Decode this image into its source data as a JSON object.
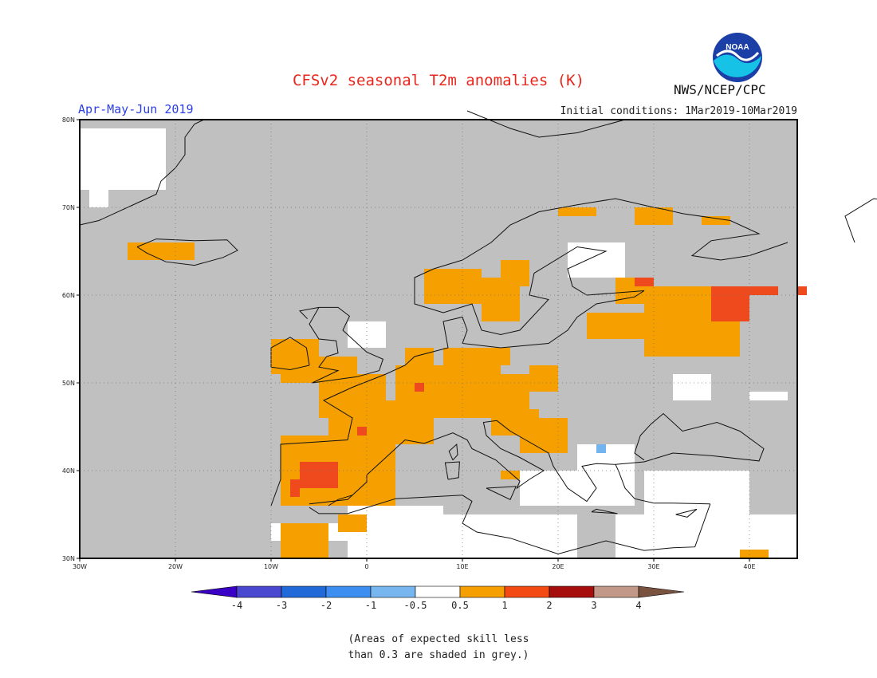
{
  "title": "CFSv2 seasonal T2m anomalies (K)",
  "period": "Apr-May-Jun 2019",
  "initial_conditions": "Initial conditions: 1Mar2019-10Mar2019",
  "agency": "NWS/NCEP/CPC",
  "logo_text": "NOAA",
  "map": {
    "lon_range": [
      -30,
      45
    ],
    "lat_range": [
      30,
      80
    ],
    "lon_ticks": [
      "30W",
      "20W",
      "10W",
      "0",
      "10E",
      "20E",
      "30E",
      "40E"
    ],
    "lat_ticks": [
      "30N",
      "40N",
      "50N",
      "60N",
      "70N",
      "80N"
    ],
    "grid": "dotted",
    "colors": {
      "low_skill": "#c0c0c0",
      "neutral": "#ffffff",
      "warm_0_5_1": "#f5a000",
      "warm_1_2": "#ee4a1e",
      "cool_m1_m0_5": "#74b4ee"
    }
  },
  "colorbar": {
    "labels": [
      "-4",
      "-3",
      "-2",
      "-1",
      "-0.5",
      "0.5",
      "1",
      "2",
      "3",
      "4"
    ],
    "colors": [
      "#3a00c6",
      "#4a48d0",
      "#1f6ad8",
      "#3c8ef0",
      "#78b6f0",
      "#ffffff",
      "#f5a000",
      "#f24a12",
      "#a60d0d",
      "#c29888",
      "#7a5340"
    ]
  },
  "note_lines": [
    "(Areas of expected skill less",
    "than 0.3 are shaded in grey.)"
  ]
}
